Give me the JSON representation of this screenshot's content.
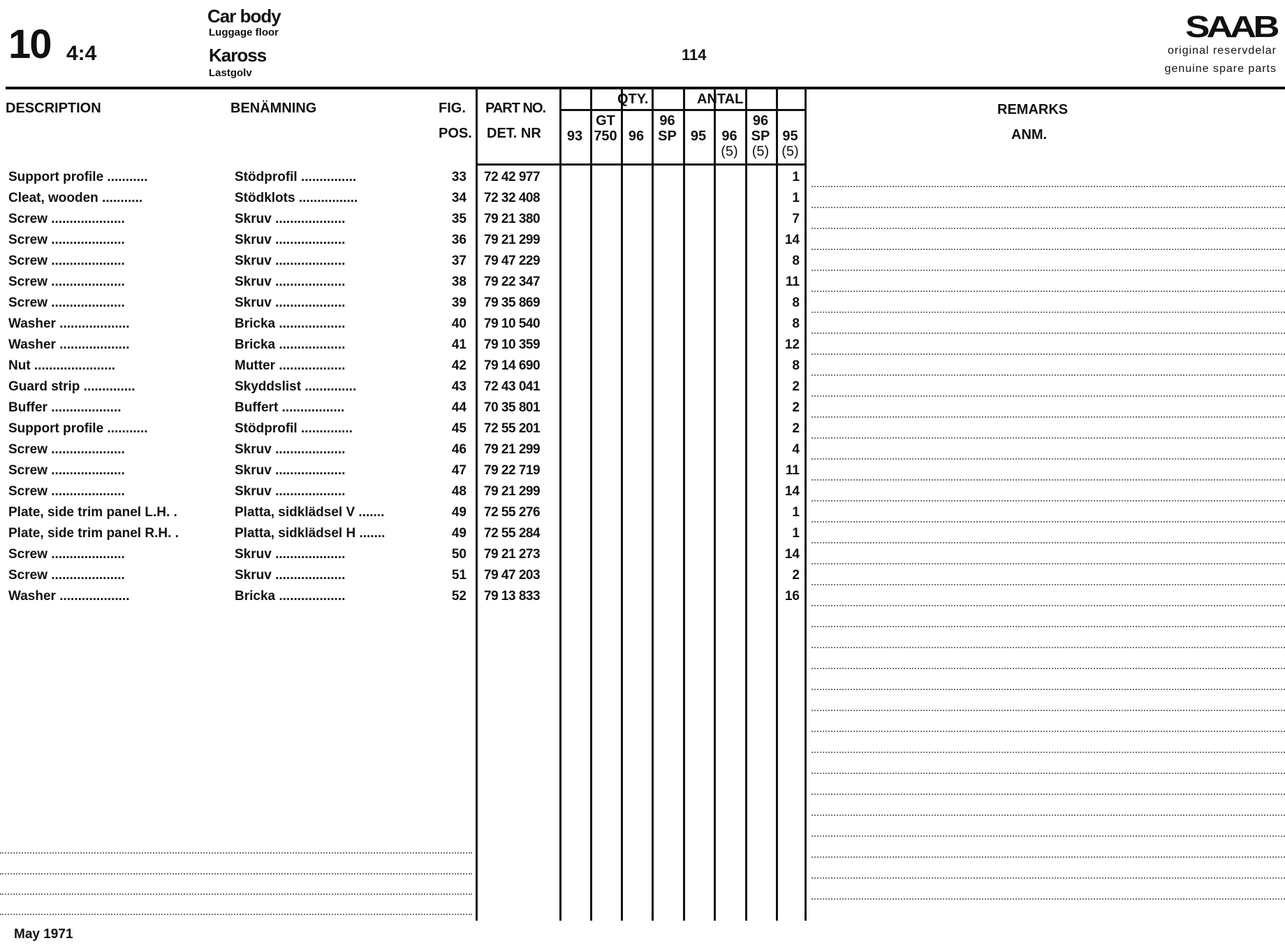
{
  "header": {
    "section": "10",
    "sheet": "4:4",
    "title_en": "Car body",
    "subtitle_en": "Luggage floor",
    "title_sv": "Kaross",
    "subtitle_sv": "Lastgolv",
    "page": "114",
    "brand": "SAAB",
    "brand_line1": "original reservdelar",
    "brand_line2": "genuine spare parts"
  },
  "columns": {
    "description": "DESCRIPTION",
    "benamning": "BENÄMNING",
    "fig": "FIG.",
    "pos": "POS.",
    "part_no": "PART NO.",
    "det_nr": "DET. NR",
    "qty": "QTY.",
    "antal": "ANTAL",
    "models": [
      {
        "top": "",
        "bottom": "93",
        "sub": ""
      },
      {
        "top": "GT",
        "bottom": "750",
        "sub": ""
      },
      {
        "top": "",
        "bottom": "96",
        "sub": ""
      },
      {
        "top": "96",
        "bottom": "SP",
        "sub": ""
      },
      {
        "top": "",
        "bottom": "95",
        "sub": ""
      },
      {
        "top": "",
        "bottom": "96",
        "sub": "(5)"
      },
      {
        "top": "96",
        "bottom": "SP",
        "sub": "(5)"
      },
      {
        "top": "",
        "bottom": "95",
        "sub": "(5)"
      }
    ],
    "remarks": "REMARKS",
    "anm": "ANM."
  },
  "rows": [
    {
      "desc": "Support profile ...........",
      "ben": "Stödprofil ...............",
      "pos": "33",
      "part": "72 42 977",
      "qty95_5": "1"
    },
    {
      "desc": "Cleat, wooden ...........",
      "ben": "Stödklots ................",
      "pos": "34",
      "part": "72 32 408",
      "qty95_5": "1"
    },
    {
      "desc": "Screw ....................",
      "ben": "Skruv ...................",
      "pos": "35",
      "part": "79 21 380",
      "qty95_5": "7"
    },
    {
      "desc": "Screw ....................",
      "ben": "Skruv ...................",
      "pos": "36",
      "part": "79 21 299",
      "qty95_5": "14"
    },
    {
      "desc": "Screw ....................",
      "ben": "Skruv ...................",
      "pos": "37",
      "part": "79 47 229",
      "qty95_5": "8"
    },
    {
      "desc": "Screw ....................",
      "ben": "Skruv ...................",
      "pos": "38",
      "part": "79 22 347",
      "qty95_5": "11"
    },
    {
      "desc": "Screw ....................",
      "ben": "Skruv ...................",
      "pos": "39",
      "part": "79 35 869",
      "qty95_5": "8"
    },
    {
      "desc": "Washer ...................",
      "ben": "Bricka ..................",
      "pos": "40",
      "part": "79 10 540",
      "qty95_5": "8"
    },
    {
      "desc": "Washer ...................",
      "ben": "Bricka ..................",
      "pos": "41",
      "part": "79 10 359",
      "qty95_5": "12"
    },
    {
      "desc": "Nut ......................",
      "ben": "Mutter ..................",
      "pos": "42",
      "part": "79 14 690",
      "qty95_5": "8"
    },
    {
      "desc": "Guard strip ..............",
      "ben": "Skyddslist ..............",
      "pos": "43",
      "part": "72 43 041",
      "qty95_5": "2"
    },
    {
      "desc": "Buffer ...................",
      "ben": "Buffert .................",
      "pos": "44",
      "part": "70 35 801",
      "qty95_5": "2"
    },
    {
      "desc": "Support profile ...........",
      "ben": "Stödprofil ..............",
      "pos": "45",
      "part": "72 55 201",
      "qty95_5": "2"
    },
    {
      "desc": "Screw ....................",
      "ben": "Skruv ...................",
      "pos": "46",
      "part": "79 21 299",
      "qty95_5": "4"
    },
    {
      "desc": "Screw ....................",
      "ben": "Skruv ...................",
      "pos": "47",
      "part": "79 22 719",
      "qty95_5": "11"
    },
    {
      "desc": "Screw ....................",
      "ben": "Skruv ...................",
      "pos": "48",
      "part": "79 21 299",
      "qty95_5": "14"
    },
    {
      "desc": "Plate, side trim panel L.H. .",
      "ben": "Platta, sidklädsel V .......",
      "pos": "49",
      "part": "72 55 276",
      "qty95_5": "1"
    },
    {
      "desc": "Plate, side trim panel R.H. .",
      "ben": "Platta, sidklädsel H .......",
      "pos": "49",
      "part": "72 55 284",
      "qty95_5": "1"
    },
    {
      "desc": "Screw ....................",
      "ben": "Skruv ...................",
      "pos": "50",
      "part": "79 21 273",
      "qty95_5": "14"
    },
    {
      "desc": "Screw ....................",
      "ben": "Skruv ...................",
      "pos": "51",
      "part": "79 47 203",
      "qty95_5": "2"
    },
    {
      "desc": "Washer ...................",
      "ben": "Bricka ..................",
      "pos": "52",
      "part": "79 13 833",
      "qty95_5": "16"
    }
  ],
  "footer": {
    "date": "May 1971"
  }
}
